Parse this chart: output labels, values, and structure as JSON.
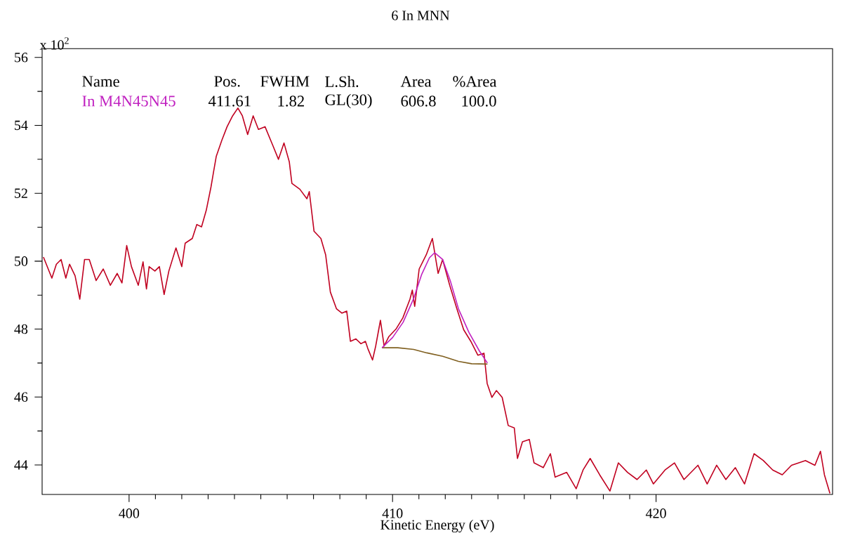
{
  "chart_data": {
    "type": "line",
    "title": "6 In MNN",
    "xlabel": "Kinetic Energy (eV)",
    "annotations": [
      "x 10$^{2}$",
      "Name",
      "Pos.",
      "FWHM",
      "L.Sh.",
      "Area",
      "%Area",
      "411.61",
      "1.82",
      "GL(30)",
      "606.8",
      "100.0"
    ],
    "xlim": [
      396.7,
      426.7
    ],
    "xticks": [
      400,
      410,
      420
    ],
    "ylim": [
      43.13,
      56.26
    ],
    "yticks": [
      44,
      46,
      48,
      50,
      52,
      54,
      56
    ],
    "series": [
      {
        "color": "#c00020",
        "x": [
          396.75,
          397.07,
          397.24,
          397.42,
          397.6,
          397.74,
          397.95,
          398.13,
          398.31,
          398.49,
          398.75,
          399.02,
          399.29,
          399.55,
          399.73,
          399.91,
          400.09,
          400.35,
          400.53,
          400.66,
          400.76,
          400.98,
          401.15,
          401.33,
          401.51,
          401.78,
          402.0,
          402.13,
          402.4,
          402.57,
          402.75,
          402.93,
          403.11,
          403.2,
          403.31,
          403.52,
          403.72,
          403.93,
          404.13,
          404.3,
          404.5,
          404.71,
          404.91,
          405.16,
          405.46,
          405.67,
          405.88,
          406.08,
          406.18,
          406.48,
          406.75,
          406.84,
          407.02,
          407.28,
          407.46,
          407.64,
          407.87,
          408.08,
          408.26,
          408.4,
          408.61,
          408.8,
          408.97,
          409.06,
          409.24,
          409.36,
          409.54,
          409.68,
          409.86,
          410.13,
          410.39,
          410.66,
          410.75,
          410.84,
          411.01,
          411.28,
          411.51,
          411.73,
          411.9,
          412.17,
          412.44,
          412.7,
          412.97,
          413.24,
          413.47,
          413.59,
          413.77,
          413.94,
          414.16,
          414.39,
          414.62,
          414.74,
          414.93,
          415.19,
          415.37,
          415.72,
          415.99,
          416.17,
          416.61,
          416.97,
          417.23,
          417.5,
          417.86,
          418.25,
          418.57,
          418.92,
          419.28,
          419.63,
          419.9,
          420.34,
          420.7,
          421.06,
          421.59,
          421.94,
          422.3,
          422.65,
          423.01,
          423.36,
          423.72,
          424.07,
          424.43,
          424.79,
          425.14,
          425.67,
          426.03,
          426.24,
          426.39,
          426.6
        ],
        "values": [
          50.12,
          49.5,
          49.91,
          50.05,
          49.5,
          49.91,
          49.57,
          48.88,
          50.05,
          50.05,
          49.43,
          49.77,
          49.29,
          49.64,
          49.36,
          50.46,
          49.84,
          49.29,
          49.98,
          49.18,
          49.84,
          49.71,
          49.84,
          49.02,
          49.71,
          50.39,
          49.84,
          50.53,
          50.67,
          51.08,
          51.01,
          51.5,
          52.19,
          52.6,
          53.09,
          53.56,
          53.96,
          54.28,
          54.51,
          54.28,
          53.73,
          54.28,
          53.88,
          53.96,
          53.4,
          53.0,
          53.48,
          52.93,
          52.29,
          52.12,
          51.84,
          52.05,
          50.88,
          50.67,
          50.19,
          49.09,
          48.6,
          48.47,
          48.53,
          47.64,
          47.71,
          47.57,
          47.64,
          47.43,
          47.09,
          47.5,
          48.26,
          47.5,
          47.78,
          48.0,
          48.33,
          48.88,
          49.15,
          48.67,
          49.77,
          50.19,
          50.67,
          49.64,
          50.05,
          49.29,
          48.6,
          47.98,
          47.64,
          47.23,
          47.29,
          46.4,
          45.99,
          46.19,
          45.99,
          45.16,
          45.09,
          44.19,
          44.68,
          44.75,
          44.06,
          43.92,
          44.33,
          43.64,
          43.78,
          43.3,
          43.85,
          44.19,
          43.71,
          43.23,
          44.06,
          43.78,
          43.57,
          43.85,
          43.44,
          43.85,
          44.06,
          43.57,
          43.99,
          43.44,
          43.99,
          43.57,
          43.92,
          43.44,
          44.33,
          44.13,
          43.85,
          43.71,
          43.99,
          44.13,
          43.99,
          44.4,
          43.71,
          43.16
        ]
      },
      {
        "color": "#806020",
        "x": [
          409.6,
          410.2,
          410.8,
          411.3,
          411.9,
          412.5,
          413.0,
          413.6
        ],
        "values": [
          47.45,
          47.45,
          47.4,
          47.3,
          47.2,
          47.05,
          46.98,
          46.97
        ]
      },
      {
        "name": "In M4N45N45",
        "color": "#c020c0",
        "x": [
          409.6,
          410.0,
          410.4,
          410.8,
          411.1,
          411.4,
          411.6,
          411.9,
          412.2,
          412.5,
          412.9,
          413.3,
          413.6
        ],
        "values": [
          47.45,
          47.75,
          48.2,
          48.9,
          49.6,
          50.1,
          50.25,
          50.05,
          49.4,
          48.6,
          47.9,
          47.35,
          47.0
        ]
      }
    ]
  }
}
